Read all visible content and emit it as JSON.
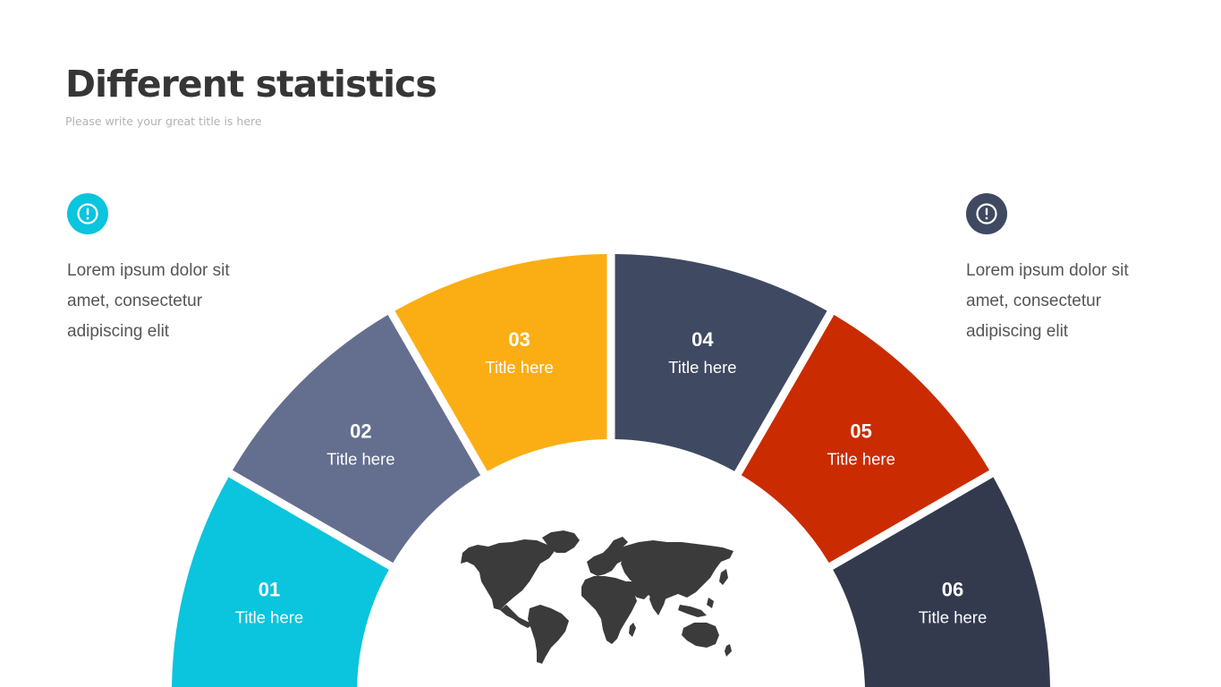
{
  "header": {
    "title": "Different statistics",
    "subtitle": "Please write your great title is here"
  },
  "left_note": {
    "icon": "exclamation-circle-icon",
    "color": "#0bc4dd",
    "lines": [
      "Lorem ipsum dolor sit",
      "amet, consectetur",
      "adipiscing elit"
    ]
  },
  "right_note": {
    "icon": "exclamation-circle-icon",
    "color": "#3f4962",
    "lines": [
      "Lorem ipsum dolor sit",
      "amet, consectetur",
      "adipiscing elit"
    ]
  },
  "diagram": {
    "center_icon": "world-map-icon",
    "segments": [
      {
        "number": "01",
        "label": "Title here",
        "color": "#0bc4dd"
      },
      {
        "number": "02",
        "label": "Title here",
        "color": "#646f8f"
      },
      {
        "number": "03",
        "label": "Title here",
        "color": "#fbae14"
      },
      {
        "number": "04",
        "label": "Title here",
        "color": "#3f4962"
      },
      {
        "number": "05",
        "label": "Title here",
        "color": "#cb2b00"
      },
      {
        "number": "06",
        "label": "Title here",
        "color": "#343a4e"
      }
    ]
  }
}
